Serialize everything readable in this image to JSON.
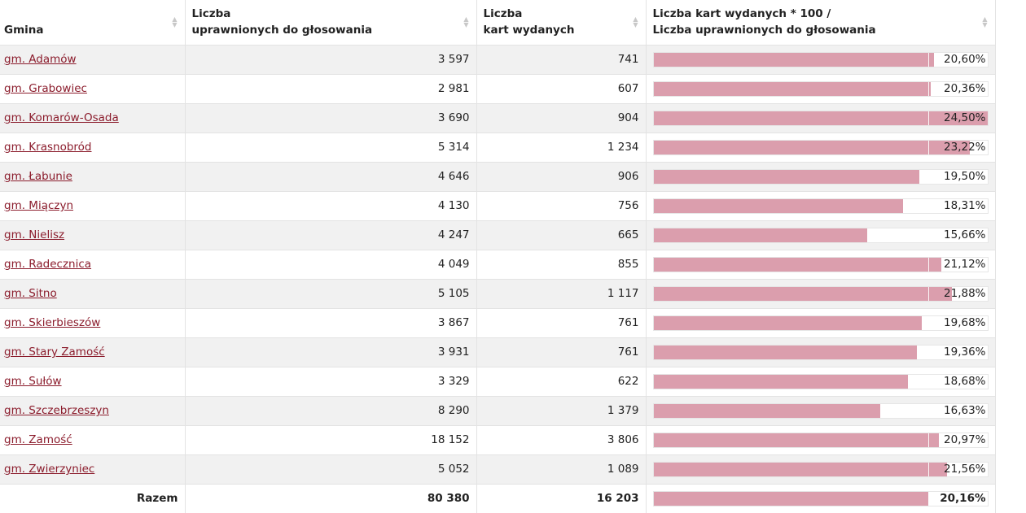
{
  "table": {
    "headers": {
      "gmina": "Gmina",
      "uprawnieni": [
        "Liczba",
        "uprawnionych do głosowania"
      ],
      "karty": [
        "Liczba",
        "kart wydanych"
      ],
      "frekwencja": [
        "Liczba kart wydanych * 100 /",
        "Liczba uprawnionych do głosowania"
      ]
    },
    "sort_icon": "sort-arrows-icon",
    "bar_color": "#db9ead",
    "link_color": "#8b1c2c",
    "bar_max_percent": 24.5,
    "rows": [
      {
        "name": "gm. Adamów",
        "uprawnieni": "3 597",
        "karty": "741",
        "frekwencja": "20,60%",
        "pct": 20.6
      },
      {
        "name": "gm. Grabowiec",
        "uprawnieni": "2 981",
        "karty": "607",
        "frekwencja": "20,36%",
        "pct": 20.36
      },
      {
        "name": "gm. Komarów-Osada",
        "uprawnieni": "3 690",
        "karty": "904",
        "frekwencja": "24,50%",
        "pct": 24.5
      },
      {
        "name": "gm. Krasnobród",
        "uprawnieni": "5 314",
        "karty": "1 234",
        "frekwencja": "23,22%",
        "pct": 23.22
      },
      {
        "name": "gm. Łabunie",
        "uprawnieni": "4 646",
        "karty": "906",
        "frekwencja": "19,50%",
        "pct": 19.5
      },
      {
        "name": "gm. Miączyn",
        "uprawnieni": "4 130",
        "karty": "756",
        "frekwencja": "18,31%",
        "pct": 18.31
      },
      {
        "name": "gm. Nielisz",
        "uprawnieni": "4 247",
        "karty": "665",
        "frekwencja": "15,66%",
        "pct": 15.66
      },
      {
        "name": "gm. Radecznica",
        "uprawnieni": "4 049",
        "karty": "855",
        "frekwencja": "21,12%",
        "pct": 21.12
      },
      {
        "name": "gm. Sitno",
        "uprawnieni": "5 105",
        "karty": "1 117",
        "frekwencja": "21,88%",
        "pct": 21.88
      },
      {
        "name": "gm. Skierbieszów",
        "uprawnieni": "3 867",
        "karty": "761",
        "frekwencja": "19,68%",
        "pct": 19.68
      },
      {
        "name": "gm. Stary Zamość",
        "uprawnieni": "3 931",
        "karty": "761",
        "frekwencja": "19,36%",
        "pct": 19.36
      },
      {
        "name": "gm. Sułów",
        "uprawnieni": "3 329",
        "karty": "622",
        "frekwencja": "18,68%",
        "pct": 18.68
      },
      {
        "name": "gm. Szczebrzeszyn",
        "uprawnieni": "8 290",
        "karty": "1 379",
        "frekwencja": "16,63%",
        "pct": 16.63
      },
      {
        "name": "gm. Zamość",
        "uprawnieni": "18 152",
        "karty": "3 806",
        "frekwencja": "20,97%",
        "pct": 20.97
      },
      {
        "name": "gm. Zwierzyniec",
        "uprawnieni": "5 052",
        "karty": "1 089",
        "frekwencja": "21,56%",
        "pct": 21.56
      }
    ],
    "total": {
      "label": "Razem",
      "uprawnieni": "80 380",
      "karty": "16 203",
      "frekwencja": "20,16%",
      "pct": 20.16
    }
  }
}
